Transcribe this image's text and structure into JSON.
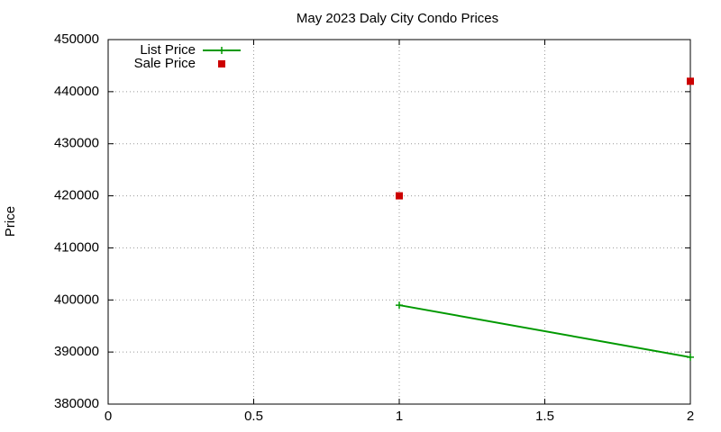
{
  "chart_data": {
    "type": "line",
    "title": "May 2023 Daly City Condo Prices",
    "y_label": "Price",
    "x": [
      1,
      2
    ],
    "series": [
      {
        "name": "List Price",
        "color": "#009900",
        "mode": "lines+points",
        "values": [
          399000,
          389000
        ]
      },
      {
        "name": "Sale Price",
        "color": "#cc0000",
        "mode": "points",
        "values": [
          420000,
          442000
        ]
      }
    ],
    "xlim": [
      0,
      2
    ],
    "xticks": [
      0,
      0.5,
      1,
      1.5,
      2
    ],
    "ylim": [
      380000,
      450000
    ],
    "yticks": [
      380000,
      390000,
      400000,
      410000,
      420000,
      430000,
      440000,
      450000
    ],
    "grid": true,
    "legend": "top-left"
  }
}
